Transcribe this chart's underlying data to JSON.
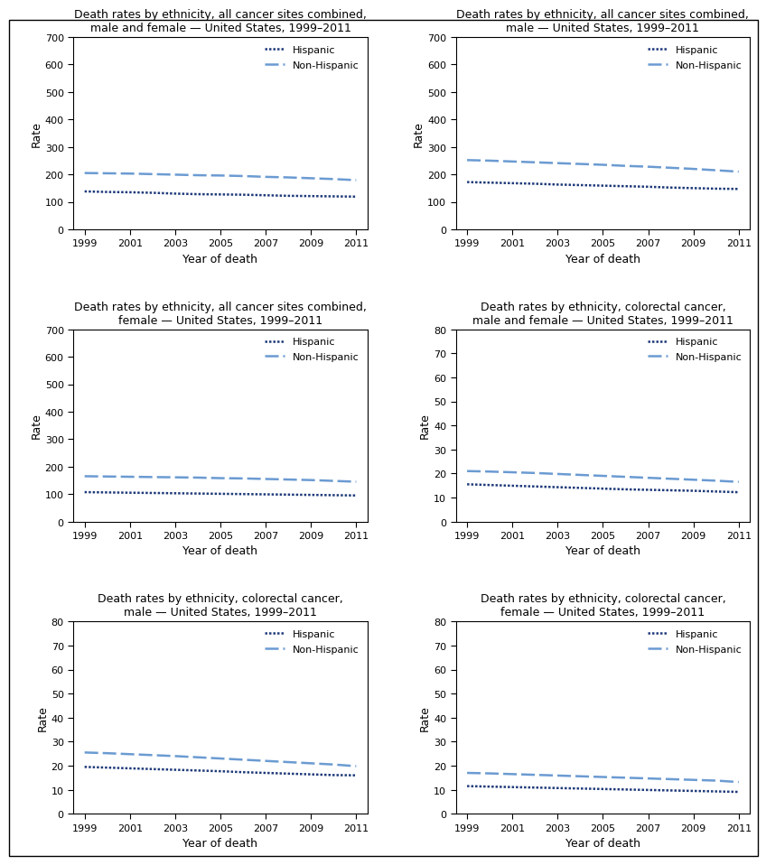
{
  "years": [
    1999,
    2000,
    2001,
    2002,
    2003,
    2004,
    2005,
    2006,
    2007,
    2008,
    2009,
    2010,
    2011
  ],
  "plots": [
    {
      "title": "Death rates by ethnicity, all cancer sites combined,\nmale and female — United States, 1999–2011",
      "ylim": [
        0,
        700
      ],
      "yticks": [
        0,
        100,
        200,
        300,
        400,
        500,
        600,
        700
      ],
      "hispanic": [
        138,
        136,
        135,
        133,
        130,
        128,
        127,
        126,
        124,
        122,
        121,
        120,
        119
      ],
      "non_hispanic": [
        205,
        204,
        203,
        201,
        199,
        197,
        196,
        194,
        191,
        189,
        186,
        183,
        179
      ]
    },
    {
      "title": "Death rates by ethnicity, all cancer sites combined,\nmale — United States, 1999–2011",
      "ylim": [
        0,
        700
      ],
      "yticks": [
        0,
        100,
        200,
        300,
        400,
        500,
        600,
        700
      ],
      "hispanic": [
        172,
        170,
        168,
        166,
        163,
        161,
        159,
        157,
        155,
        152,
        150,
        148,
        147
      ],
      "non_hispanic": [
        252,
        250,
        247,
        244,
        241,
        238,
        235,
        231,
        228,
        224,
        220,
        215,
        210
      ]
    },
    {
      "title": "Death rates by ethnicity, all cancer sites combined,\nfemale — United States, 1999–2011",
      "ylim": [
        0,
        700
      ],
      "yticks": [
        0,
        100,
        200,
        300,
        400,
        500,
        600,
        700
      ],
      "hispanic": [
        107,
        106,
        105,
        104,
        103,
        102,
        101,
        100,
        99,
        98,
        97,
        96,
        95
      ],
      "non_hispanic": [
        165,
        164,
        163,
        162,
        161,
        160,
        158,
        157,
        155,
        153,
        151,
        148,
        145
      ]
    },
    {
      "title": "Death rates by ethnicity, colorectal cancer,\nmale and female — United States, 1999–2011",
      "ylim": [
        0,
        80
      ],
      "yticks": [
        0,
        10,
        20,
        30,
        40,
        50,
        60,
        70,
        80
      ],
      "hispanic": [
        15.5,
        15.2,
        14.9,
        14.6,
        14.3,
        14.0,
        13.7,
        13.4,
        13.2,
        13.0,
        12.8,
        12.5,
        12.2
      ],
      "non_hispanic": [
        21.0,
        20.8,
        20.5,
        20.2,
        19.8,
        19.4,
        19.0,
        18.6,
        18.2,
        17.8,
        17.4,
        17.0,
        16.5
      ]
    },
    {
      "title": "Death rates by ethnicity, colorectal cancer,\nmale — United States, 1999–2011",
      "ylim": [
        0,
        80
      ],
      "yticks": [
        0,
        10,
        20,
        30,
        40,
        50,
        60,
        70,
        80
      ],
      "hispanic": [
        19.5,
        19.2,
        18.9,
        18.6,
        18.3,
        18.0,
        17.7,
        17.3,
        17.0,
        16.7,
        16.4,
        16.1,
        16.0
      ],
      "non_hispanic": [
        25.5,
        25.2,
        24.8,
        24.4,
        24.0,
        23.5,
        23.0,
        22.5,
        22.0,
        21.5,
        21.0,
        20.5,
        19.8
      ]
    },
    {
      "title": "Death rates by ethnicity, colorectal cancer,\nfemale — United States, 1999–2011",
      "ylim": [
        0,
        80
      ],
      "yticks": [
        0,
        10,
        20,
        30,
        40,
        50,
        60,
        70,
        80
      ],
      "hispanic": [
        11.5,
        11.3,
        11.1,
        10.9,
        10.7,
        10.5,
        10.3,
        10.1,
        9.9,
        9.7,
        9.5,
        9.3,
        9.1
      ],
      "non_hispanic": [
        17.0,
        16.8,
        16.5,
        16.2,
        15.9,
        15.6,
        15.3,
        15.0,
        14.7,
        14.4,
        14.1,
        13.8,
        13.2
      ]
    }
  ],
  "hispanic_color": "#1F3B7A",
  "non_hispanic_color": "#6B9BD2",
  "hispanic_lw": 1.8,
  "non_hispanic_lw": 1.8,
  "xlabel": "Year of death",
  "ylabel": "Rate",
  "xticks": [
    1999,
    2001,
    2003,
    2005,
    2007,
    2009,
    2011
  ],
  "title_fontsize": 9,
  "axis_fontsize": 9,
  "tick_fontsize": 8,
  "legend_fontsize": 8
}
